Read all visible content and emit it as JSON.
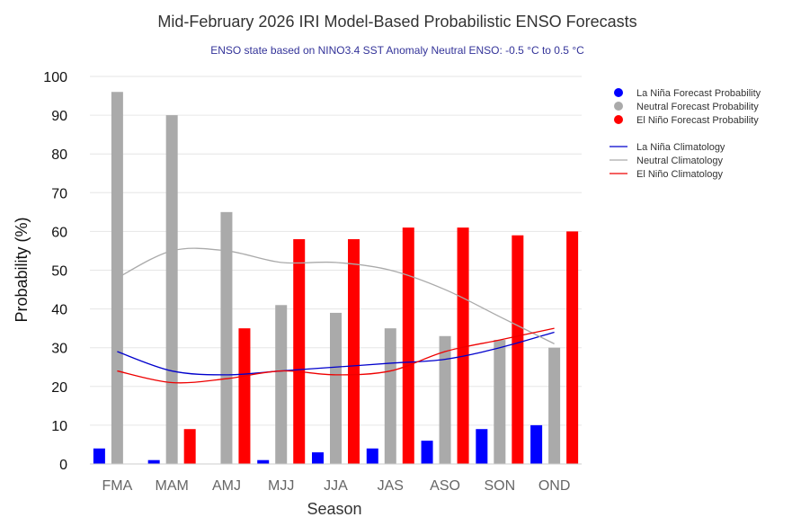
{
  "chart_data": {
    "type": "bar",
    "title": "Mid-February 2026 IRI Model-Based Probabilistic ENSO Forecasts",
    "subtitle": "ENSO state based on NINO3.4 SST Anomaly Neutral ENSO: -0.5 °C to 0.5 °C",
    "xlabel": "Season",
    "ylabel": "Probability (%)",
    "ylim": [
      0,
      100
    ],
    "yticks": [
      0,
      10,
      20,
      30,
      40,
      50,
      60,
      70,
      80,
      90,
      100
    ],
    "grid": true,
    "legend_position": "top-right",
    "categories": [
      "FMA",
      "MAM",
      "AMJ",
      "MJJ",
      "JJA",
      "JAS",
      "ASO",
      "SON",
      "OND"
    ],
    "series": [
      {
        "name": "La Niña Forecast Probability",
        "color": "#0000ff",
        "values": [
          4,
          1,
          0,
          1,
          3,
          4,
          6,
          9,
          10
        ]
      },
      {
        "name": "Neutral Forecast Probability",
        "color": "#aaaaaa",
        "values": [
          96,
          90,
          65,
          41,
          39,
          35,
          33,
          32,
          30
        ]
      },
      {
        "name": "El Niño Forecast Probability",
        "color": "#ff0000",
        "values": [
          0,
          9,
          35,
          58,
          58,
          61,
          61,
          59,
          60
        ]
      }
    ],
    "lines": [
      {
        "name": "La Niña Climatology",
        "color": "#0000cc",
        "values": [
          29,
          24,
          23,
          24,
          25,
          26,
          27,
          30,
          34
        ]
      },
      {
        "name": "Neutral Climatology",
        "color": "#aaaaaa",
        "values": [
          48,
          55,
          55,
          52,
          52,
          50,
          45,
          38,
          31
        ]
      },
      {
        "name": "El Niño Climatology",
        "color": "#ee0000",
        "values": [
          24,
          21,
          22,
          24,
          23,
          24,
          29,
          32,
          35
        ]
      }
    ]
  }
}
